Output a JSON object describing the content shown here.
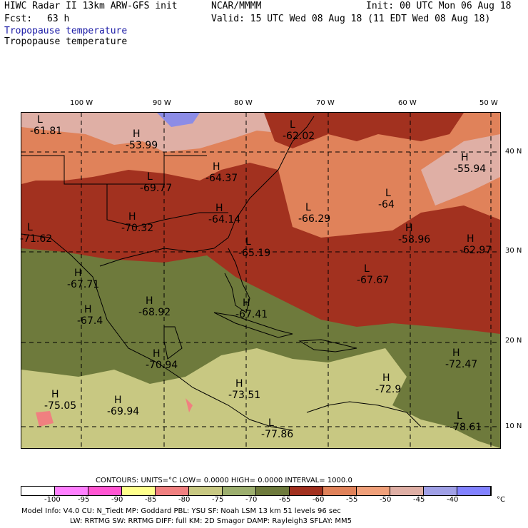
{
  "header": {
    "model": "HIWC Radar II 13km ARW-GFS init",
    "source": "NCAR/MMMM",
    "init": "Init: 00 UTC Mon 06 Aug 18",
    "fcst_label": "Fcst:",
    "fcst_value": "63 h",
    "valid": "Valid: 15 UTC Wed 08 Aug 18 (11 EDT Wed 08 Aug 18)",
    "field_blue": "Tropopause temperature",
    "field_black": "Tropopause temperature"
  },
  "lon_labels": [
    "100 W",
    "90 W",
    "80 W",
    "70 W",
    "60 W",
    "50 W"
  ],
  "lat_labels": [
    "40 N",
    "30 N",
    "20 N",
    "10 N"
  ],
  "pressure_centers": [
    {
      "letter": "L",
      "value": "-61.81"
    },
    {
      "letter": "H",
      "value": "-53.99"
    },
    {
      "letter": "L",
      "value": "-62.02"
    },
    {
      "letter": "H",
      "value": "-55.94"
    },
    {
      "letter": "H",
      "value": "-64.37"
    },
    {
      "letter": "L",
      "value": "-69.77"
    },
    {
      "letter": "L",
      "value": "-64"
    },
    {
      "letter": "L",
      "value": "-66.29"
    },
    {
      "letter": "H",
      "value": "-64.14"
    },
    {
      "letter": "L",
      "value": "-71.62"
    },
    {
      "letter": "H",
      "value": "-70.32"
    },
    {
      "letter": "H",
      "value": "-58.96"
    },
    {
      "letter": "H",
      "value": "-62.97"
    },
    {
      "letter": "L",
      "value": "-65.19"
    },
    {
      "letter": "H",
      "value": "-67.71"
    },
    {
      "letter": "L",
      "value": "-67.67"
    },
    {
      "letter": "H",
      "value": "-68.92"
    },
    {
      "letter": "H",
      "value": "-67.4"
    },
    {
      "letter": "H",
      "value": "-67.41"
    },
    {
      "letter": "H",
      "value": "-72.47"
    },
    {
      "letter": "H",
      "value": "-70.94"
    },
    {
      "letter": "H",
      "value": "-73.51"
    },
    {
      "letter": "H",
      "value": "-72.9"
    },
    {
      "letter": "H",
      "value": "-75.05"
    },
    {
      "letter": "H",
      "value": "-69.94"
    },
    {
      "letter": "L",
      "value": "-77.86"
    },
    {
      "letter": "L",
      "value": "-78.61"
    }
  ],
  "contours": {
    "text": "CONTOURS:  UNITS=°C  LOW=  0.0000        HIGH=  0.0000        INTERVAL=   1000.0"
  },
  "colorbar": {
    "colors": [
      "#ffffff",
      "#ff80ff",
      "#ff55d2",
      "#ffff8c",
      "#f08080",
      "#c8c882",
      "#9cae6e",
      "#6e7a3c",
      "#a2311f",
      "#e0825a",
      "#f0a07a",
      "#dfafa5",
      "#a0a0e6",
      "#8282ff",
      "#6464f0",
      "#7070ff"
    ],
    "ticks": [
      "-100",
      "-95",
      "-90",
      "-85",
      "-80",
      "-75",
      "-70",
      "-65",
      "-60",
      "-55",
      "-50",
      "-45",
      "-40"
    ],
    "unit": "°C"
  },
  "footer": {
    "line1": "Model Info: V4.0     CU: N_Tiedt  MP: Goddard      PBL: YSU       SF: Noah LSM     13 km    51 levels   96 sec",
    "line2": "LW: RRTMG    SW: RRTMG   DIFF: full     KM: 2D Smagor  DAMP: Rayleigh3  SFLAY: MM5"
  }
}
